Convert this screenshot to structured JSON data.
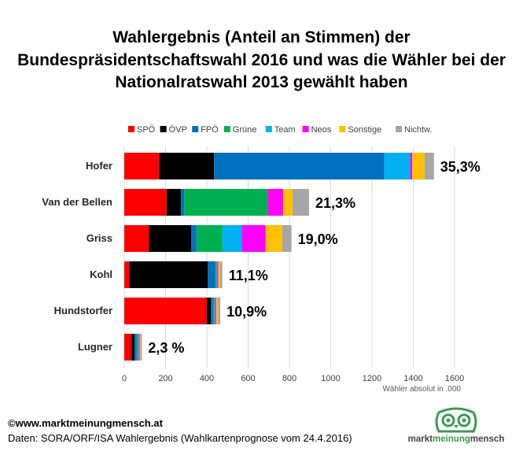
{
  "title_lines": [
    "Wahlergebnis (Anteil an Stimmen) der",
    "Bundespräsidentschaftswahl 2016 und was die Wähler bei der",
    "Nationalratswahl 2013 gewählt haben"
  ],
  "footer": {
    "copyright": "©www.marktmeinungmensch.at",
    "source": "Daten: SORA/ORF/ISA Wahlergebnis (Wahlkartenprognose vom 24.4.2016)"
  },
  "logo": {
    "part1": "markt",
    "part2": "meinung",
    "part3": "mensch"
  },
  "colors": {
    "SPÖ": "#ff0000",
    "ÖVP": "#000000",
    "FPÖ": "#0070c0",
    "Grüne": "#00b050",
    "Team": "#00b0f0",
    "Neos": "#ff00ff",
    "Sonstige": "#ffc000",
    "Nichtw.": "#a6a6a6"
  },
  "chart_data": {
    "type": "bar",
    "orientation": "horizontal",
    "stacked": true,
    "xlabel": "Wähler absolut in .000",
    "xlim": [
      0,
      1600
    ],
    "xticks": [
      0,
      200,
      400,
      600,
      800,
      1000,
      1200,
      1400,
      1600
    ],
    "grid": true,
    "legend_position": "top",
    "categories": [
      "Hofer",
      "Van der Bellen",
      "Griss",
      "Kohl",
      "Hundstorfer",
      "Lugner"
    ],
    "percent_labels": [
      "35,3%",
      "21,3%",
      "19,0%",
      "11,1%",
      "10,9%",
      "2,3 %"
    ],
    "series": [
      {
        "name": "SPÖ",
        "values": [
          170,
          205,
          120,
          25,
          400,
          35
        ]
      },
      {
        "name": "ÖVP",
        "values": [
          265,
          70,
          205,
          380,
          20,
          15
        ]
      },
      {
        "name": "FPÖ",
        "values": [
          825,
          15,
          25,
          35,
          10,
          10
        ]
      },
      {
        "name": "Grüne",
        "values": [
          0,
          405,
          125,
          5,
          5,
          5
        ]
      },
      {
        "name": "Team",
        "values": [
          125,
          0,
          95,
          5,
          5,
          5
        ]
      },
      {
        "name": "Neos",
        "values": [
          10,
          75,
          115,
          5,
          5,
          5
        ]
      },
      {
        "name": "Sonstige",
        "values": [
          60,
          45,
          80,
          10,
          10,
          5
        ]
      },
      {
        "name": "Nichtw.",
        "values": [
          45,
          80,
          45,
          10,
          10,
          5
        ]
      }
    ]
  }
}
